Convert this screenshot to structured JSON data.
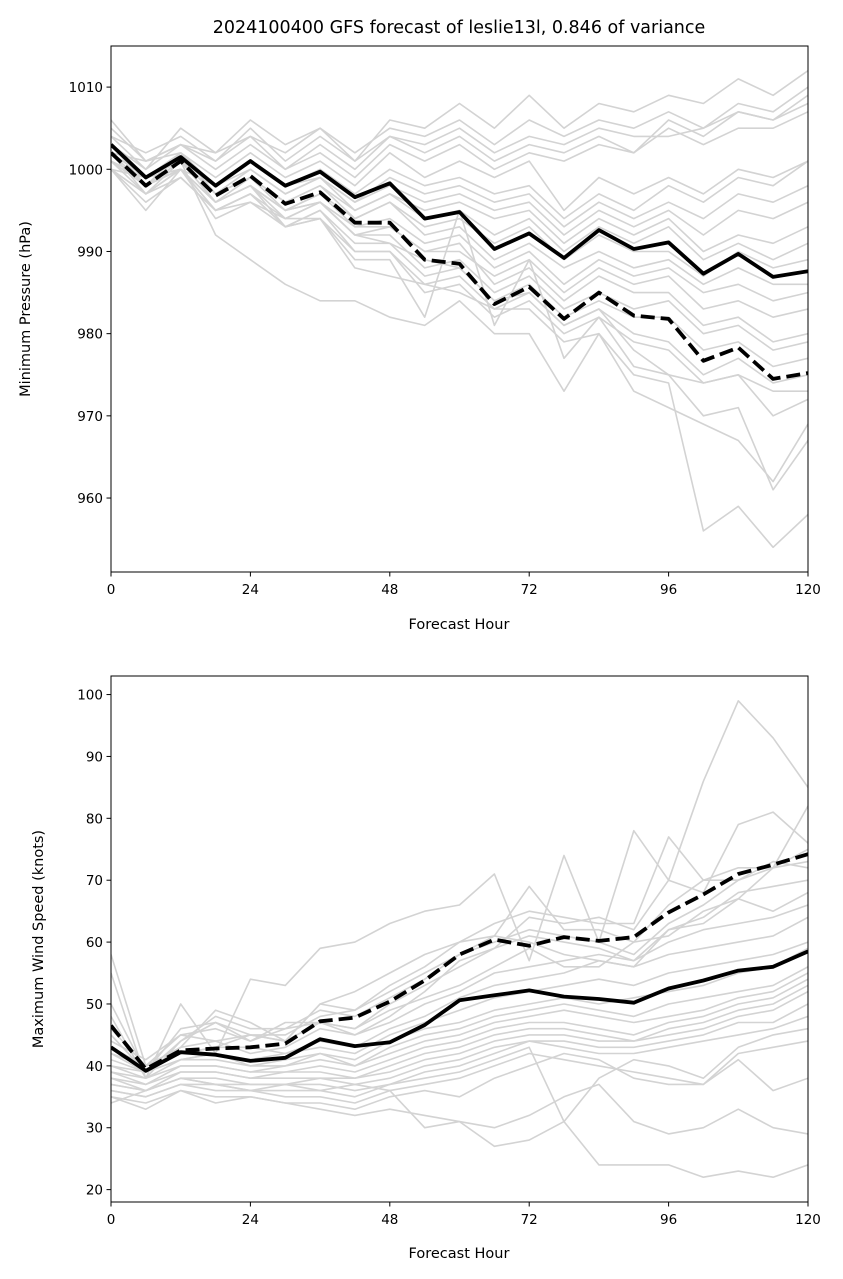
{
  "chart_data": [
    {
      "type": "line",
      "title": "2024100400 GFS forecast of leslie13l, 0.846 of variance",
      "xlabel": "Forecast Hour",
      "ylabel": "Minimum Pressure (hPa)",
      "xlim": [
        0,
        120
      ],
      "ylim": [
        951,
        1015
      ],
      "xticks": [
        0,
        24,
        48,
        72,
        96,
        120
      ],
      "yticks": [
        960,
        970,
        980,
        990,
        1000,
        1010
      ],
      "grid": false,
      "x": [
        0,
        6,
        12,
        18,
        24,
        30,
        36,
        42,
        48,
        54,
        60,
        66,
        72,
        78,
        84,
        90,
        96,
        102,
        108,
        114,
        120
      ],
      "series": [
        {
          "style": "solid",
          "color": "#000000",
          "values": [
            1003,
            999,
            1001.5,
            998,
            1001,
            998,
            999.7,
            996.6,
            998.3,
            994,
            994.8,
            990.3,
            992.2,
            989.2,
            992.6,
            990.3,
            991.1,
            987.3,
            989.7,
            986.9,
            987.6
          ]
        },
        {
          "style": "dashed",
          "color": "#000000",
          "values": [
            1002,
            998,
            1001,
            996.8,
            999.2,
            995.8,
            997.2,
            993.5,
            993.5,
            989,
            988.5,
            983.6,
            985.7,
            981.8,
            985,
            982.2,
            981.8,
            976.7,
            978.3,
            974.5,
            975.2
          ]
        }
      ],
      "ensemble_color": "#d3d3d3",
      "ensemble": [
        [
          1006,
          1001,
          1003,
          1002,
          1006,
          1003,
          1005,
          1001,
          1006,
          1005,
          1008,
          1005,
          1009,
          1005,
          1008,
          1007,
          1009,
          1008,
          1011,
          1009,
          1012
        ],
        [
          1005,
          1001,
          1003,
          1001,
          1004,
          1002,
          1005,
          1002,
          1005,
          1004,
          1006,
          1003,
          1006,
          1004,
          1006,
          1005,
          1007,
          1005,
          1008,
          1007,
          1010
        ],
        [
          1004,
          1002,
          1004,
          1001,
          1005,
          1001,
          1004,
          1001,
          1004,
          1003,
          1005,
          1002,
          1004,
          1003,
          1005,
          1004,
          1004,
          1005,
          1007,
          1006,
          1009
        ],
        [
          1004,
          1000,
          1005,
          1002,
          1004,
          1000,
          1003,
          1000,
          1004,
          1002,
          1004,
          1001,
          1003,
          1002,
          1004,
          1002,
          1006,
          1004,
          1007,
          1006,
          1008
        ],
        [
          1003,
          1000,
          1003,
          1000,
          1003,
          1000,
          1002,
          999,
          1003,
          1001,
          1003,
          1000,
          1002,
          1001,
          1003,
          1002,
          1005,
          1003,
          1005,
          1005,
          1007
        ],
        [
          1002,
          1001,
          1002,
          999,
          1002,
          999,
          1001,
          998,
          1002,
          999,
          1001,
          999,
          1001,
          995,
          999,
          997,
          999,
          997,
          1000,
          999,
          1001
        ],
        [
          1001,
          999,
          1001,
          998,
          1001,
          998,
          1000,
          997,
          1000,
          998,
          999,
          997,
          998,
          994,
          997,
          995,
          998,
          996,
          999,
          998,
          1001
        ],
        [
          1000,
          999,
          1000,
          998,
          1000,
          997,
          999,
          996,
          999,
          997,
          998,
          996,
          997,
          993,
          996,
          994,
          996,
          994,
          997,
          996,
          998
        ],
        [
          1003,
          998,
          1002,
          997,
          1000,
          997,
          999,
          996,
          998,
          996,
          997,
          995,
          996,
          992,
          995,
          993,
          995,
          992,
          995,
          994,
          996
        ],
        [
          1001,
          998,
          1001,
          996,
          999,
          996,
          998,
          995,
          997,
          995,
          996,
          994,
          995,
          991,
          994,
          992,
          994,
          990,
          992,
          991,
          993
        ],
        [
          1002,
          999,
          1002,
          998,
          1001,
          998,
          999,
          995,
          997,
          994,
          995,
          992,
          994,
          990,
          993,
          991,
          993,
          989,
          991,
          989,
          991
        ],
        [
          1000,
          997,
          1000,
          996,
          998,
          995,
          997,
          994,
          996,
          993,
          994,
          991,
          993,
          989,
          992,
          990,
          990,
          987,
          990,
          988,
          989
        ],
        [
          1002,
          998,
          1001,
          997,
          999,
          996,
          998,
          994,
          996,
          992,
          993,
          989,
          991,
          988,
          990,
          988,
          989,
          986,
          988,
          986,
          986
        ],
        [
          1001,
          997,
          1000,
          996,
          998,
          995,
          996,
          993,
          994,
          991,
          992,
          988,
          990,
          986,
          989,
          987,
          988,
          985,
          986,
          984,
          985
        ],
        [
          1000,
          996,
          999,
          995,
          997,
          994,
          996,
          992,
          993,
          990,
          990,
          987,
          989,
          985,
          988,
          986,
          987,
          983,
          984,
          982,
          983
        ],
        [
          1003,
          999,
          1001,
          997,
          999,
          995,
          997,
          993,
          993,
          990,
          991,
          986,
          988,
          984,
          987,
          985,
          985,
          981,
          982,
          979,
          980
        ],
        [
          1001,
          998,
          1000,
          996,
          998,
          994,
          996,
          992,
          992,
          988,
          989,
          985,
          987,
          983,
          985,
          983,
          984,
          980,
          981,
          978,
          979
        ],
        [
          1000,
          997,
          999,
          995,
          997,
          993,
          995,
          991,
          991,
          987,
          988,
          984,
          986,
          982,
          984,
          982,
          982,
          978,
          979,
          976,
          977
        ],
        [
          1002,
          999,
          1000,
          996,
          998,
          993,
          995,
          990,
          990,
          986,
          987,
          983,
          985,
          981,
          983,
          980,
          979,
          975,
          977,
          974,
          975
        ],
        [
          1001,
          998,
          1000,
          995,
          997,
          993,
          994,
          990,
          990,
          985,
          986,
          982,
          984,
          980,
          982,
          979,
          978,
          974,
          975,
          973,
          973
        ],
        [
          1000,
          995,
          1000,
          994,
          996,
          993,
          994,
          989,
          989,
          982,
          995,
          981,
          989,
          977,
          982,
          976,
          975,
          974,
          975,
          970,
          972
        ],
        [
          1002,
          997,
          1001,
          992,
          989,
          986,
          984,
          984,
          982,
          981,
          984,
          980,
          980,
          973,
          980,
          973,
          971,
          969,
          967,
          962,
          969
        ],
        [
          1001,
          998,
          1000,
          995,
          996,
          994,
          994,
          988,
          987,
          986,
          985,
          983,
          983,
          979,
          980,
          975,
          974,
          956,
          959,
          954,
          958
        ],
        [
          1003,
          999,
          1001,
          996,
          998,
          995,
          996,
          992,
          991,
          989,
          988,
          984,
          985,
          981,
          983,
          978,
          975,
          970,
          971,
          961,
          967
        ]
      ]
    },
    {
      "type": "line",
      "title": "",
      "xlabel": "Forecast Hour",
      "ylabel": "Maximum Wind Speed (knots)",
      "xlim": [
        0,
        120
      ],
      "ylim": [
        18,
        103
      ],
      "xticks": [
        0,
        24,
        48,
        72,
        96,
        120
      ],
      "yticks": [
        20,
        30,
        40,
        50,
        60,
        70,
        80,
        90,
        100
      ],
      "grid": false,
      "x": [
        0,
        6,
        12,
        18,
        24,
        30,
        36,
        42,
        48,
        54,
        60,
        66,
        72,
        78,
        84,
        90,
        96,
        102,
        108,
        114,
        120
      ],
      "series": [
        {
          "style": "solid",
          "color": "#000000",
          "values": [
            43,
            39.2,
            42.2,
            41.8,
            40.8,
            41.3,
            44.3,
            43.2,
            43.8,
            46.6,
            50.6,
            51.4,
            52.2,
            51.2,
            50.8,
            50.2,
            52.5,
            53.8,
            55.4,
            56,
            58.5
          ]
        },
        {
          "style": "dashed",
          "color": "#000000",
          "values": [
            46.5,
            39.5,
            42.5,
            42.8,
            43,
            43.6,
            47.2,
            47.8,
            50.4,
            53.8,
            58,
            60.4,
            59.4,
            60.8,
            60.2,
            60.8,
            64.8,
            67.7,
            71,
            72.5,
            74.2
          ]
        }
      ],
      "ensemble_color": "#d3d3d3",
      "ensemble": [
        [
          58,
          40,
          45,
          44,
          45,
          44,
          50,
          49,
          53,
          56,
          60,
          63,
          65,
          64,
          63,
          63,
          77,
          70,
          72,
          72,
          82
        ],
        [
          55,
          38,
          50,
          42,
          54,
          53,
          59,
          60,
          63,
          65,
          66,
          71,
          57,
          74,
          60,
          78,
          70,
          86,
          99,
          93,
          85
        ],
        [
          50,
          39,
          46,
          47,
          44,
          46,
          47,
          45,
          48,
          52,
          57,
          59,
          64,
          63,
          64,
          62,
          70,
          68,
          79,
          81,
          76
        ],
        [
          48,
          38,
          44,
          48,
          46,
          46,
          49,
          48,
          51,
          54,
          58,
          61,
          69,
          62,
          62,
          60,
          66,
          70,
          70,
          72,
          75
        ],
        [
          46,
          40,
          43,
          49,
          47,
          44,
          50,
          52,
          55,
          58,
          60,
          61,
          60,
          58,
          57,
          56,
          62,
          63,
          67,
          72,
          73
        ],
        [
          45,
          39,
          44,
          47,
          45,
          45,
          48,
          49,
          52,
          55,
          58,
          60,
          62,
          61,
          60,
          58,
          63,
          66,
          70,
          73,
          72
        ],
        [
          44,
          41,
          45,
          46,
          44,
          47,
          47,
          46,
          50,
          53,
          56,
          59,
          61,
          60,
          59,
          57,
          62,
          64,
          68,
          69,
          70
        ],
        [
          43,
          40,
          42,
          43,
          45,
          44,
          47,
          46,
          49,
          51,
          53,
          56,
          59,
          56,
          56,
          60,
          61,
          65,
          67,
          65,
          68
        ],
        [
          42,
          39,
          43,
          44,
          42,
          43,
          46,
          45,
          47,
          50,
          52,
          55,
          56,
          57,
          58,
          57,
          60,
          62,
          63,
          64,
          66
        ],
        [
          42,
          40,
          42,
          43,
          43,
          42,
          44,
          43,
          46,
          48,
          51,
          53,
          54,
          55,
          57,
          56,
          58,
          59,
          60,
          61,
          64
        ],
        [
          41,
          39,
          41,
          42,
          41,
          42,
          43,
          42,
          45,
          47,
          49,
          51,
          52,
          53,
          54,
          53,
          55,
          56,
          57,
          58,
          60
        ],
        [
          40,
          38,
          41,
          42,
          40,
          41,
          42,
          41,
          44,
          46,
          47,
          49,
          50,
          51,
          50,
          51,
          52,
          53,
          55,
          56,
          59
        ],
        [
          40,
          39,
          41,
          41,
          40,
          40,
          42,
          40,
          43,
          45,
          46,
          48,
          49,
          50,
          49,
          48,
          50,
          51,
          52,
          53,
          56
        ],
        [
          39,
          38,
          40,
          40,
          39,
          40,
          41,
          40,
          42,
          44,
          45,
          47,
          48,
          49,
          48,
          47,
          48,
          49,
          51,
          52,
          55
        ],
        [
          39,
          37,
          40,
          40,
          39,
          39,
          40,
          39,
          41,
          43,
          44,
          46,
          47,
          47,
          46,
          45,
          47,
          48,
          50,
          51,
          54
        ],
        [
          38,
          37,
          39,
          39,
          38,
          39,
          39,
          38,
          40,
          42,
          43,
          45,
          46,
          46,
          45,
          44,
          46,
          47,
          49,
          50,
          53
        ],
        [
          38,
          36,
          39,
          39,
          38,
          38,
          38,
          38,
          39,
          41,
          42,
          44,
          45,
          45,
          44,
          44,
          45,
          46,
          48,
          49,
          52
        ],
        [
          37,
          36,
          38,
          38,
          37,
          37,
          38,
          37,
          38,
          40,
          41,
          43,
          44,
          44,
          43,
          43,
          44,
          45,
          47,
          47,
          50
        ],
        [
          37,
          36,
          38,
          37,
          37,
          37,
          37,
          36,
          37,
          39,
          40,
          42,
          44,
          43,
          42,
          42,
          43,
          44,
          45,
          46,
          48
        ],
        [
          36,
          35,
          37,
          37,
          36,
          36,
          36,
          35,
          37,
          38,
          39,
          41,
          43,
          31,
          38,
          41,
          40,
          38,
          43,
          45,
          46
        ],
        [
          36,
          35,
          37,
          36,
          36,
          35,
          35,
          34,
          36,
          37,
          38,
          40,
          42,
          41,
          40,
          39,
          38,
          37,
          42,
          43,
          44
        ],
        [
          35,
          34,
          36,
          35,
          35,
          34,
          34,
          33,
          35,
          36,
          35,
          38,
          40,
          42,
          41,
          38,
          37,
          37,
          41,
          36,
          38
        ],
        [
          35,
          33,
          36,
          34,
          35,
          34,
          33,
          32,
          33,
          32,
          31,
          27,
          28,
          31,
          24,
          24,
          24,
          22,
          23,
          22,
          24
        ],
        [
          34,
          36,
          38,
          37,
          36,
          37,
          36,
          37,
          36,
          30,
          31,
          30,
          32,
          35,
          37,
          31,
          29,
          30,
          33,
          30,
          29
        ]
      ]
    }
  ]
}
